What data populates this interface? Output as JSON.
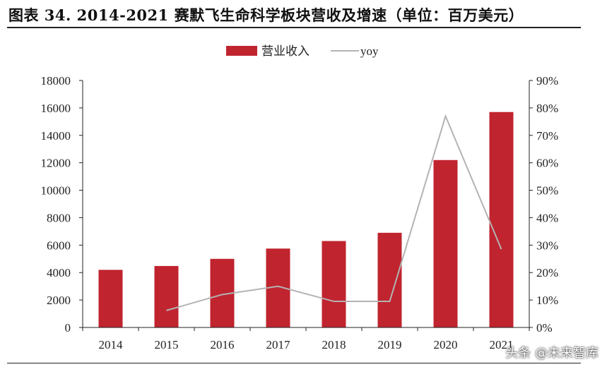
{
  "page": {
    "title": "图表 34. 2014-2021 赛默飞生命科学板块营收及增速（单位：百万美元）",
    "watermark": "头条 @未来智库"
  },
  "colors": {
    "bar": "#c0242f",
    "line": "#b3b3b3",
    "axis": "#222222"
  },
  "chart_data": {
    "type": "bar",
    "title": "",
    "legend_position": "top",
    "grid": false,
    "categories": [
      "2014",
      "2015",
      "2016",
      "2017",
      "2018",
      "2019",
      "2020",
      "2021"
    ],
    "series": [
      {
        "name": "营业收入",
        "type": "bar",
        "axis": "left",
        "values": [
          4200,
          4480,
          5000,
          5750,
          6300,
          6900,
          12200,
          15700
        ]
      },
      {
        "name": "yoy",
        "type": "line",
        "axis": "right",
        "values": [
          null,
          0.062,
          0.12,
          0.15,
          0.095,
          0.095,
          0.77,
          0.285
        ]
      }
    ],
    "y_left": {
      "min": 0,
      "max": 18000,
      "ticks": [
        "0",
        "2000",
        "4000",
        "6000",
        "8000",
        "10000",
        "12000",
        "14000",
        "16000",
        "18000"
      ]
    },
    "y_right": {
      "min": 0,
      "max": 0.9,
      "ticks": [
        "0%",
        "10%",
        "20%",
        "30%",
        "40%",
        "50%",
        "60%",
        "70%",
        "80%",
        "90%"
      ]
    }
  }
}
